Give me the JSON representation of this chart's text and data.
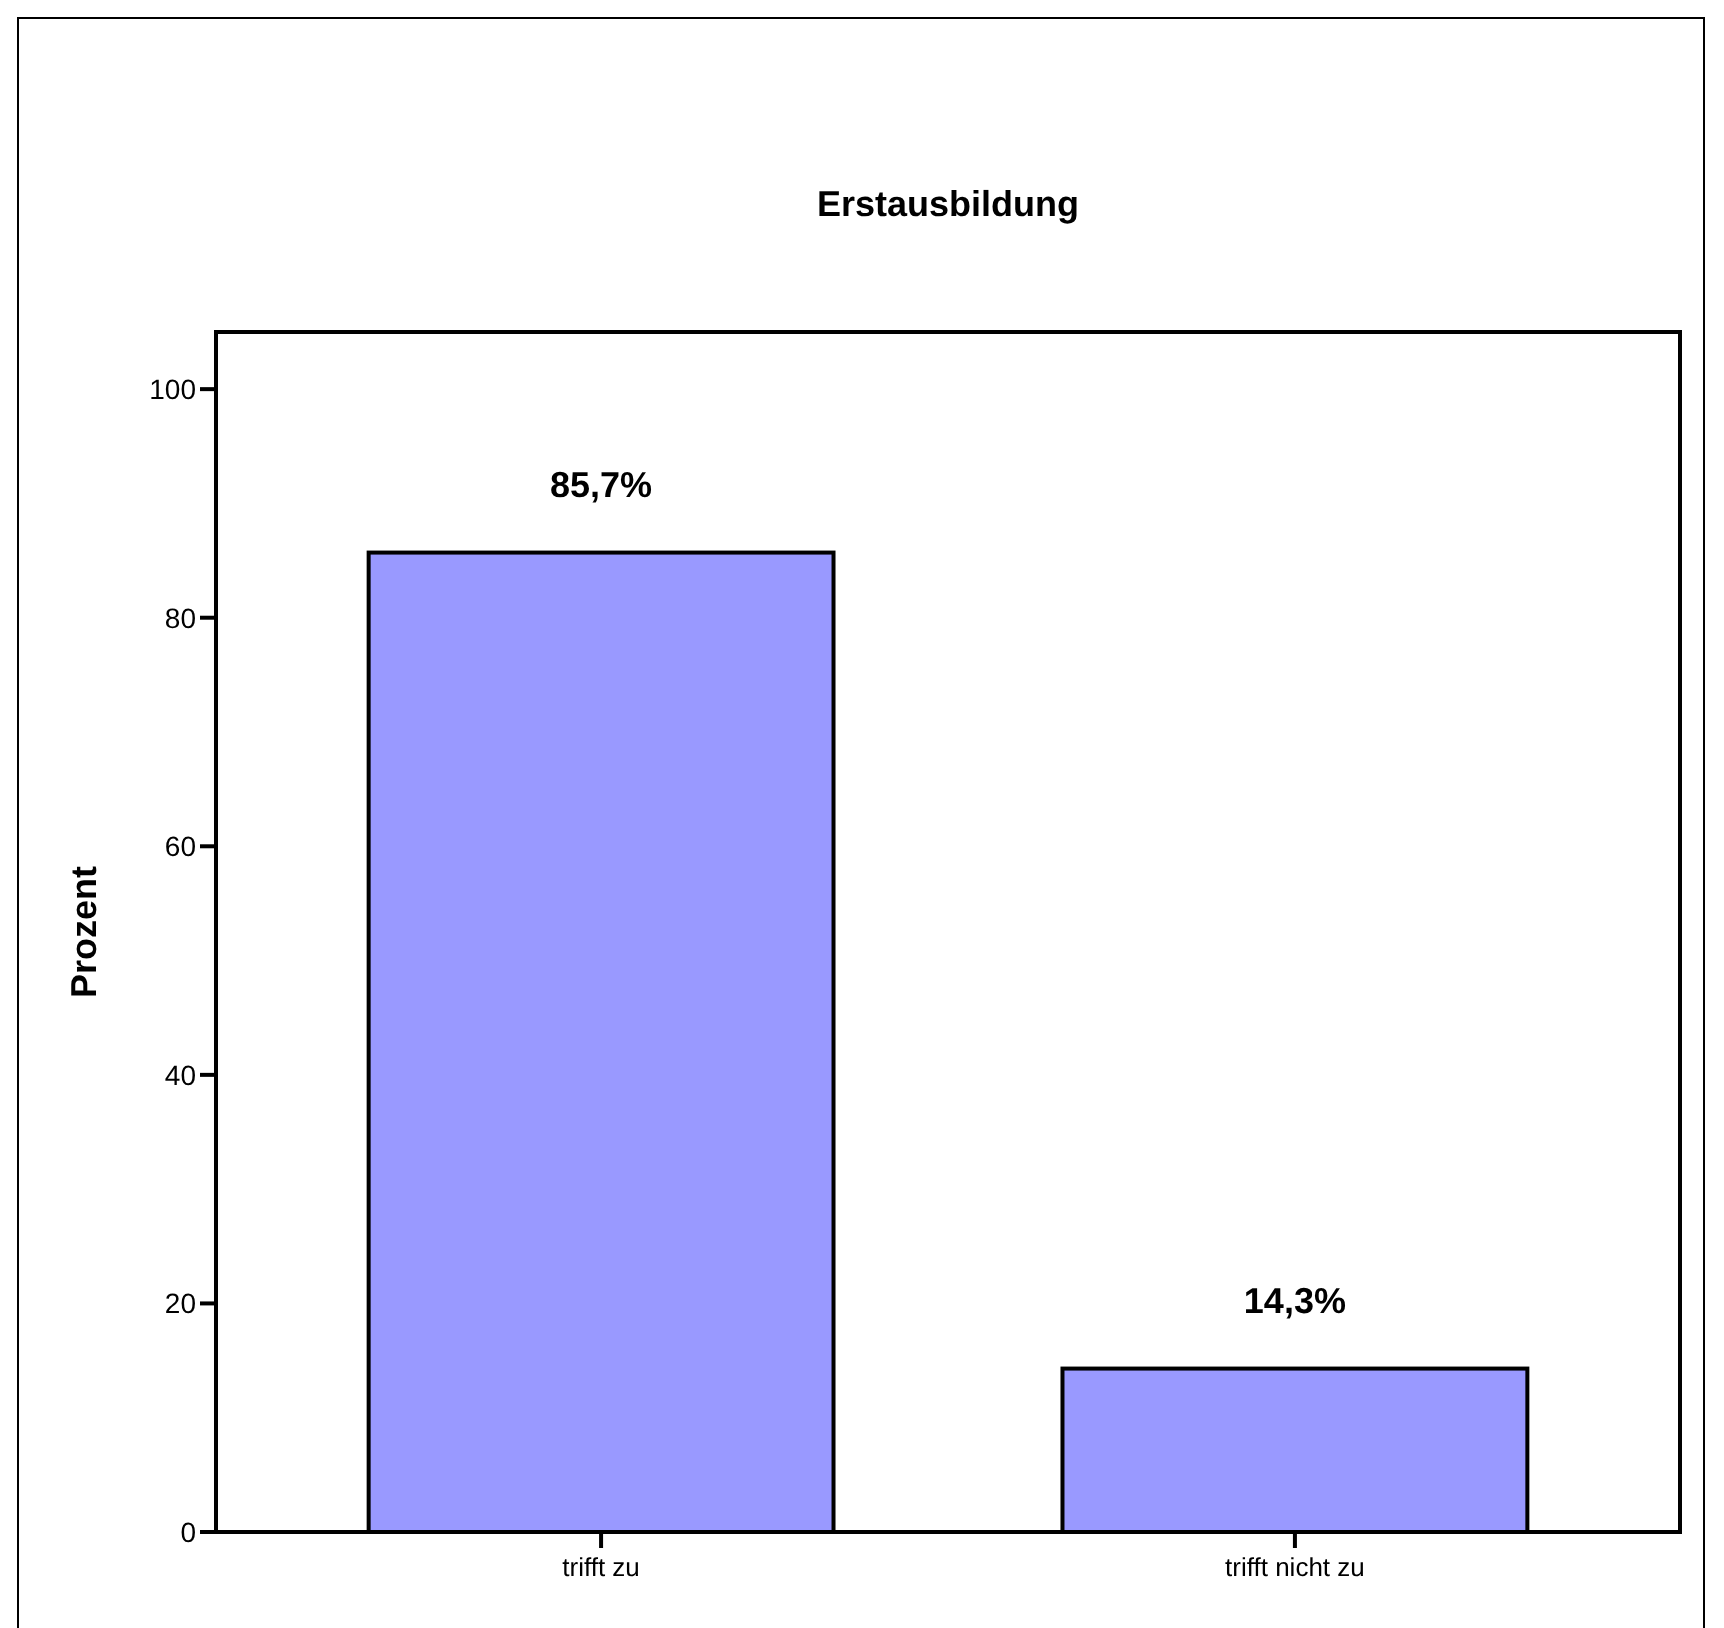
{
  "chart_data": {
    "type": "bar",
    "title": "Erstausbildung",
    "ylabel": "Prozent",
    "categories": [
      "trifft zu",
      "trifft nicht zu"
    ],
    "values": [
      85.7,
      14.3
    ],
    "color": "#9999ff",
    "value_labels": [
      "85,7%",
      "14,3%"
    ],
    "ylim": [
      0,
      105
    ],
    "yticks": [
      0,
      20,
      40,
      60,
      80,
      100
    ]
  }
}
